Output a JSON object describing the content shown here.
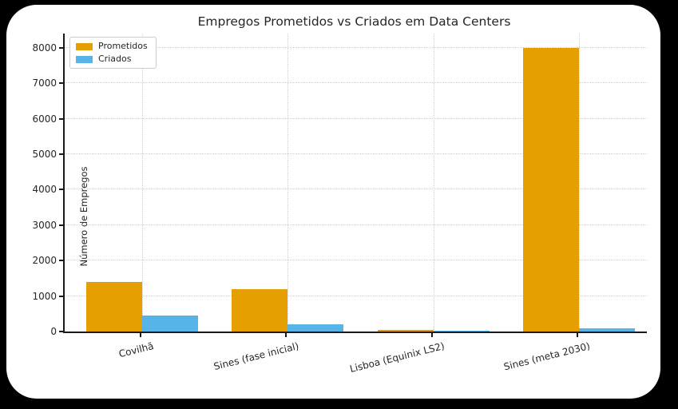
{
  "title": "Empregos Prometidos vs Criados em Data Centers",
  "chart_data": {
    "type": "bar",
    "title": "Empregos Prometidos vs Criados em Data Centers",
    "categories": [
      "Covilhã",
      "Sines (fase inicial)",
      "Lisboa (Equinix LS2)",
      "Sines (meta 2030)"
    ],
    "series": [
      {
        "name": "Prometidos",
        "color": "#E69F00",
        "values": [
          1400,
          1200,
          50,
          8000
        ]
      },
      {
        "name": "Criados",
        "color": "#56B4E9",
        "values": [
          450,
          200,
          25,
          100
        ]
      }
    ],
    "xlabel": "",
    "ylabel": "Número de Empregos",
    "ylim": [
      0,
      8400
    ],
    "yticks": [
      0,
      1000,
      2000,
      3000,
      4000,
      5000,
      6000,
      7000,
      8000
    ],
    "grid": true,
    "grid_style": "dotted",
    "legend_position": "upper-left",
    "background_color": "#ffffff",
    "outer_background_color": "#000000"
  }
}
